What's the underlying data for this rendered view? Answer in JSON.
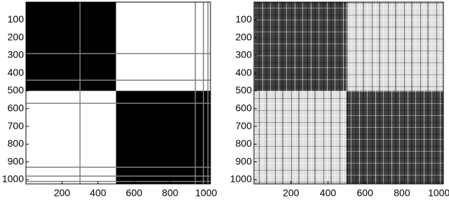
{
  "chart_data": [
    {
      "type": "heatmap",
      "xlim": [
        0,
        1024
      ],
      "ylim": [
        0,
        1024
      ],
      "y_reversed": true,
      "xticks": [
        200,
        400,
        600,
        800,
        1000
      ],
      "yticks": [
        100,
        200,
        300,
        400,
        500,
        600,
        700,
        800,
        900,
        1000
      ],
      "colors": [
        "#ffffff",
        "#000000"
      ],
      "blocks": [
        {
          "x": [
            0,
            500
          ],
          "y": [
            0,
            500
          ],
          "value": 1
        },
        {
          "x": [
            500,
            1024
          ],
          "y": [
            0,
            500
          ],
          "value": 0
        },
        {
          "x": [
            0,
            500
          ],
          "y": [
            500,
            1024
          ],
          "value": 0
        },
        {
          "x": [
            500,
            1024
          ],
          "y": [
            500,
            1024
          ],
          "value": 1
        }
      ],
      "stripes_x": [
        300,
        940,
        985,
        1010
      ],
      "stripes_y": [
        290,
        440,
        570,
        930,
        980,
        1010
      ]
    },
    {
      "type": "heatmap",
      "xlim": [
        0,
        1024
      ],
      "ylim": [
        0,
        1024
      ],
      "y_reversed": true,
      "xticks": [
        200,
        400,
        600,
        800,
        1000
      ],
      "yticks": [
        100,
        200,
        300,
        400,
        500,
        600,
        700,
        800,
        900,
        1000
      ],
      "colors": [
        "#ffffff",
        "#000000"
      ],
      "blocks": [
        {
          "x": [
            0,
            500
          ],
          "y": [
            0,
            500
          ],
          "value": 0.75
        },
        {
          "x": [
            500,
            1024
          ],
          "y": [
            0,
            500
          ],
          "value": 0.12
        },
        {
          "x": [
            0,
            500
          ],
          "y": [
            500,
            1024
          ],
          "value": 0.12
        },
        {
          "x": [
            500,
            1024
          ],
          "y": [
            500,
            1024
          ],
          "value": 0.75
        }
      ],
      "stripes_x": [],
      "stripes_y": []
    }
  ]
}
